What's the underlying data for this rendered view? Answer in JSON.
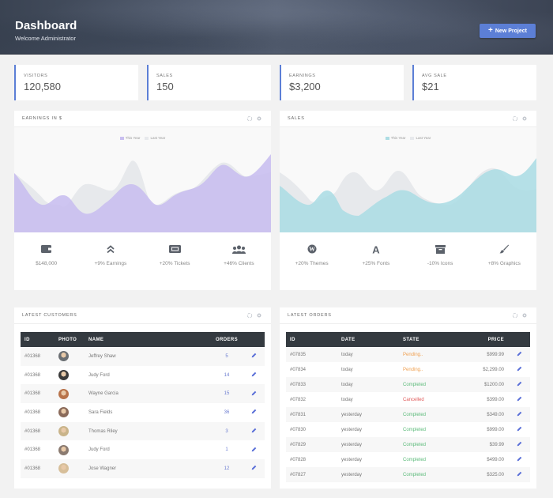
{
  "header": {
    "title": "Dashboard",
    "subtitle": "Welcome Administrator",
    "new_project_label": "New Project",
    "new_project_icon": "plus-icon"
  },
  "stats": [
    {
      "label": "VISITORS",
      "value": "120,580"
    },
    {
      "label": "SALES",
      "value": "150"
    },
    {
      "label": "EARNINGS",
      "value": "$3,200"
    },
    {
      "label": "AVG SALE",
      "value": "$21"
    }
  ],
  "colors": {
    "accent": "#5c7fd6",
    "earnings_this_year": "#c9bff0",
    "sales_this_year": "#addde4",
    "last_year": "#e7e9ec",
    "header_dark": "#343a40",
    "pending": "#f0a050",
    "completed": "#5cbb7a",
    "cancelled": "#e05a5a"
  },
  "earnings_card": {
    "title": "EARNINGS IN $",
    "refresh_icon": "refresh-icon",
    "settings_icon": "gear-icon",
    "legend": [
      "This Year",
      "Last Year"
    ],
    "kpis": [
      {
        "icon": "wallet-icon",
        "text": "$148,000"
      },
      {
        "icon": "double-chevron-up-icon",
        "text": "+9% Earnings"
      },
      {
        "icon": "ticket-icon",
        "text": "+20% Tickets"
      },
      {
        "icon": "users-icon",
        "text": "+46% Clients"
      }
    ]
  },
  "sales_card": {
    "title": "SALES",
    "refresh_icon": "refresh-icon",
    "settings_icon": "gear-icon",
    "legend": [
      "This Year",
      "Last Year"
    ],
    "kpis": [
      {
        "icon": "wordpress-icon",
        "text": "+20% Themes"
      },
      {
        "icon": "font-icon",
        "text": "+25% Fonts"
      },
      {
        "icon": "archive-icon",
        "text": "-10% Icons"
      },
      {
        "icon": "paint-brush-icon",
        "text": "+8% Graphics"
      }
    ]
  },
  "customers_card": {
    "title": "LATEST CUSTOMERS",
    "columns": [
      "ID",
      "PHOTO",
      "NAME",
      "ORDERS",
      ""
    ],
    "rows": [
      {
        "id": "#01368",
        "name": "Jeffrey Shaw",
        "orders": "5",
        "avatar_color": "#6b6f73"
      },
      {
        "id": "#01368",
        "name": "Judy Ford",
        "orders": "14",
        "avatar_color": "#3a3a3a"
      },
      {
        "id": "#01368",
        "name": "Wayne Garcia",
        "orders": "15",
        "avatar_color": "#b8734a"
      },
      {
        "id": "#01368",
        "name": "Sara Fields",
        "orders": "36",
        "avatar_color": "#8a6a5a"
      },
      {
        "id": "#01368",
        "name": "Thomas Riley",
        "orders": "3",
        "avatar_color": "#c9b48a"
      },
      {
        "id": "#01368",
        "name": "Judy Ford",
        "orders": "1",
        "avatar_color": "#8a7a70"
      },
      {
        "id": "#01368",
        "name": "Jose Wagner",
        "orders": "12",
        "avatar_color": "#d7bf9a"
      }
    ]
  },
  "orders_card": {
    "title": "LATEST ORDERS",
    "columns": [
      "ID",
      "DATE",
      "STATE",
      "PRICE",
      ""
    ],
    "rows": [
      {
        "id": "#07835",
        "date": "today",
        "state": "Pending..",
        "state_class": "pending",
        "price": "$999.99"
      },
      {
        "id": "#07834",
        "date": "today",
        "state": "Pending..",
        "state_class": "pending",
        "price": "$2,299.00"
      },
      {
        "id": "#07833",
        "date": "today",
        "state": "Completed",
        "state_class": "completed",
        "price": "$1200.00"
      },
      {
        "id": "#07832",
        "date": "today",
        "state": "Cancelled",
        "state_class": "cancelled",
        "price": "$399.00"
      },
      {
        "id": "#07831",
        "date": "yesterday",
        "state": "Completed",
        "state_class": "completed",
        "price": "$349.00"
      },
      {
        "id": "#07830",
        "date": "yesterday",
        "state": "Completed",
        "state_class": "completed",
        "price": "$999.00"
      },
      {
        "id": "#07829",
        "date": "yesterday",
        "state": "Completed",
        "state_class": "completed",
        "price": "$39.99"
      },
      {
        "id": "#07828",
        "date": "yesterday",
        "state": "Completed",
        "state_class": "completed",
        "price": "$499.00"
      },
      {
        "id": "#07827",
        "date": "yesterday",
        "state": "Completed",
        "state_class": "completed",
        "price": "$325.00"
      }
    ]
  },
  "chart_data": [
    {
      "type": "area",
      "title": "EARNINGS IN $",
      "legend": [
        "This Year",
        "Last Year"
      ],
      "legend_position": "top",
      "grid": false,
      "x": [
        0,
        1,
        2,
        3,
        4,
        5,
        6,
        7,
        8,
        9,
        10
      ],
      "series": [
        {
          "name": "This Year",
          "values": [
            55,
            35,
            40,
            25,
            30,
            45,
            25,
            45,
            60,
            50,
            75
          ]
        },
        {
          "name": "Last Year",
          "values": [
            55,
            42,
            30,
            50,
            45,
            70,
            30,
            45,
            65,
            40,
            50
          ]
        }
      ]
    },
    {
      "type": "area",
      "title": "SALES",
      "legend": [
        "This Year",
        "Last Year"
      ],
      "legend_position": "top",
      "grid": false,
      "x": [
        0,
        1,
        2,
        3,
        4,
        5,
        6,
        7,
        8,
        9,
        10
      ],
      "series": [
        {
          "name": "This Year",
          "values": [
            45,
            32,
            45,
            22,
            35,
            42,
            38,
            35,
            60,
            55,
            70
          ]
        },
        {
          "name": "Last Year",
          "values": [
            55,
            40,
            30,
            55,
            45,
            60,
            38,
            36,
            62,
            38,
            45
          ]
        }
      ]
    }
  ]
}
